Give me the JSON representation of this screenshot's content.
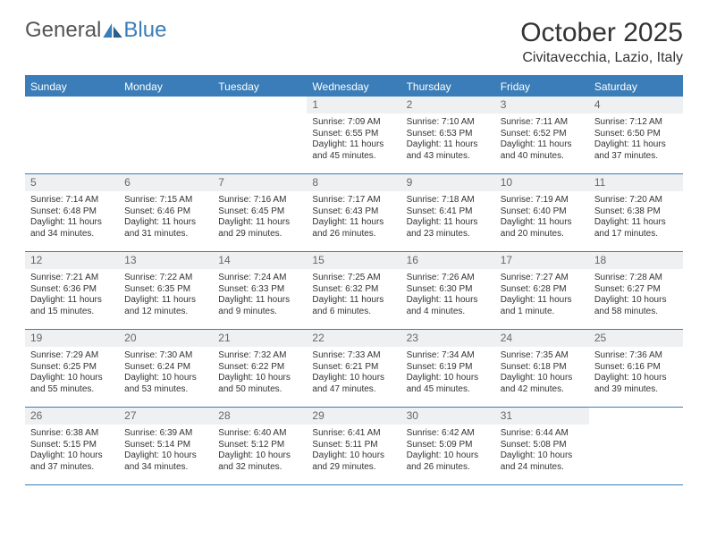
{
  "brand": {
    "part1": "General",
    "part2": "Blue"
  },
  "title": "October 2025",
  "location": "Civitavecchia, Lazio, Italy",
  "columns": [
    "Sunday",
    "Monday",
    "Tuesday",
    "Wednesday",
    "Thursday",
    "Friday",
    "Saturday"
  ],
  "colors": {
    "header_bg": "#3a7db8",
    "header_text": "#ffffff",
    "daynum_bg": "#eef0f2",
    "border": "#3a7db8"
  },
  "weeks": [
    [
      {
        "n": "",
        "lines": []
      },
      {
        "n": "",
        "lines": []
      },
      {
        "n": "",
        "lines": []
      },
      {
        "n": "1",
        "lines": [
          "Sunrise: 7:09 AM",
          "Sunset: 6:55 PM",
          "Daylight: 11 hours and 45 minutes."
        ]
      },
      {
        "n": "2",
        "lines": [
          "Sunrise: 7:10 AM",
          "Sunset: 6:53 PM",
          "Daylight: 11 hours and 43 minutes."
        ]
      },
      {
        "n": "3",
        "lines": [
          "Sunrise: 7:11 AM",
          "Sunset: 6:52 PM",
          "Daylight: 11 hours and 40 minutes."
        ]
      },
      {
        "n": "4",
        "lines": [
          "Sunrise: 7:12 AM",
          "Sunset: 6:50 PM",
          "Daylight: 11 hours and 37 minutes."
        ]
      }
    ],
    [
      {
        "n": "5",
        "lines": [
          "Sunrise: 7:14 AM",
          "Sunset: 6:48 PM",
          "Daylight: 11 hours and 34 minutes."
        ]
      },
      {
        "n": "6",
        "lines": [
          "Sunrise: 7:15 AM",
          "Sunset: 6:46 PM",
          "Daylight: 11 hours and 31 minutes."
        ]
      },
      {
        "n": "7",
        "lines": [
          "Sunrise: 7:16 AM",
          "Sunset: 6:45 PM",
          "Daylight: 11 hours and 29 minutes."
        ]
      },
      {
        "n": "8",
        "lines": [
          "Sunrise: 7:17 AM",
          "Sunset: 6:43 PM",
          "Daylight: 11 hours and 26 minutes."
        ]
      },
      {
        "n": "9",
        "lines": [
          "Sunrise: 7:18 AM",
          "Sunset: 6:41 PM",
          "Daylight: 11 hours and 23 minutes."
        ]
      },
      {
        "n": "10",
        "lines": [
          "Sunrise: 7:19 AM",
          "Sunset: 6:40 PM",
          "Daylight: 11 hours and 20 minutes."
        ]
      },
      {
        "n": "11",
        "lines": [
          "Sunrise: 7:20 AM",
          "Sunset: 6:38 PM",
          "Daylight: 11 hours and 17 minutes."
        ]
      }
    ],
    [
      {
        "n": "12",
        "lines": [
          "Sunrise: 7:21 AM",
          "Sunset: 6:36 PM",
          "Daylight: 11 hours and 15 minutes."
        ]
      },
      {
        "n": "13",
        "lines": [
          "Sunrise: 7:22 AM",
          "Sunset: 6:35 PM",
          "Daylight: 11 hours and 12 minutes."
        ]
      },
      {
        "n": "14",
        "lines": [
          "Sunrise: 7:24 AM",
          "Sunset: 6:33 PM",
          "Daylight: 11 hours and 9 minutes."
        ]
      },
      {
        "n": "15",
        "lines": [
          "Sunrise: 7:25 AM",
          "Sunset: 6:32 PM",
          "Daylight: 11 hours and 6 minutes."
        ]
      },
      {
        "n": "16",
        "lines": [
          "Sunrise: 7:26 AM",
          "Sunset: 6:30 PM",
          "Daylight: 11 hours and 4 minutes."
        ]
      },
      {
        "n": "17",
        "lines": [
          "Sunrise: 7:27 AM",
          "Sunset: 6:28 PM",
          "Daylight: 11 hours and 1 minute."
        ]
      },
      {
        "n": "18",
        "lines": [
          "Sunrise: 7:28 AM",
          "Sunset: 6:27 PM",
          "Daylight: 10 hours and 58 minutes."
        ]
      }
    ],
    [
      {
        "n": "19",
        "lines": [
          "Sunrise: 7:29 AM",
          "Sunset: 6:25 PM",
          "Daylight: 10 hours and 55 minutes."
        ]
      },
      {
        "n": "20",
        "lines": [
          "Sunrise: 7:30 AM",
          "Sunset: 6:24 PM",
          "Daylight: 10 hours and 53 minutes."
        ]
      },
      {
        "n": "21",
        "lines": [
          "Sunrise: 7:32 AM",
          "Sunset: 6:22 PM",
          "Daylight: 10 hours and 50 minutes."
        ]
      },
      {
        "n": "22",
        "lines": [
          "Sunrise: 7:33 AM",
          "Sunset: 6:21 PM",
          "Daylight: 10 hours and 47 minutes."
        ]
      },
      {
        "n": "23",
        "lines": [
          "Sunrise: 7:34 AM",
          "Sunset: 6:19 PM",
          "Daylight: 10 hours and 45 minutes."
        ]
      },
      {
        "n": "24",
        "lines": [
          "Sunrise: 7:35 AM",
          "Sunset: 6:18 PM",
          "Daylight: 10 hours and 42 minutes."
        ]
      },
      {
        "n": "25",
        "lines": [
          "Sunrise: 7:36 AM",
          "Sunset: 6:16 PM",
          "Daylight: 10 hours and 39 minutes."
        ]
      }
    ],
    [
      {
        "n": "26",
        "lines": [
          "Sunrise: 6:38 AM",
          "Sunset: 5:15 PM",
          "Daylight: 10 hours and 37 minutes."
        ]
      },
      {
        "n": "27",
        "lines": [
          "Sunrise: 6:39 AM",
          "Sunset: 5:14 PM",
          "Daylight: 10 hours and 34 minutes."
        ]
      },
      {
        "n": "28",
        "lines": [
          "Sunrise: 6:40 AM",
          "Sunset: 5:12 PM",
          "Daylight: 10 hours and 32 minutes."
        ]
      },
      {
        "n": "29",
        "lines": [
          "Sunrise: 6:41 AM",
          "Sunset: 5:11 PM",
          "Daylight: 10 hours and 29 minutes."
        ]
      },
      {
        "n": "30",
        "lines": [
          "Sunrise: 6:42 AM",
          "Sunset: 5:09 PM",
          "Daylight: 10 hours and 26 minutes."
        ]
      },
      {
        "n": "31",
        "lines": [
          "Sunrise: 6:44 AM",
          "Sunset: 5:08 PM",
          "Daylight: 10 hours and 24 minutes."
        ]
      },
      {
        "n": "",
        "lines": []
      }
    ]
  ]
}
